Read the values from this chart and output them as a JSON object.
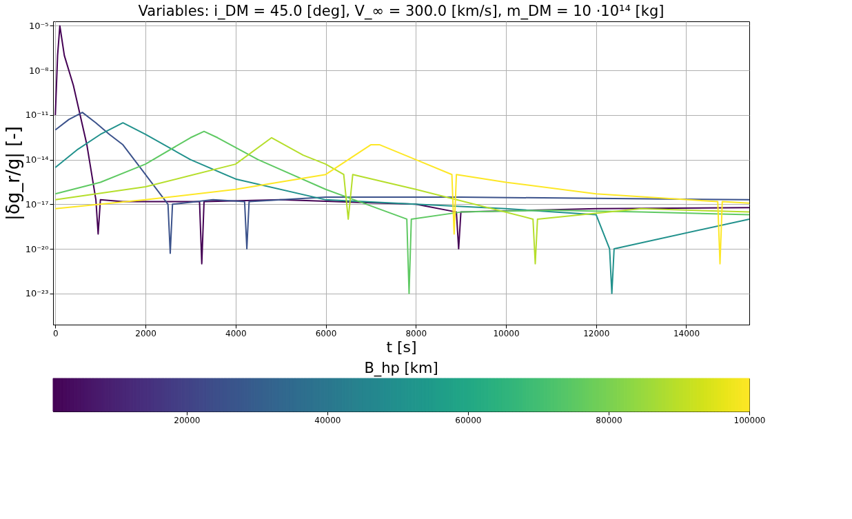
{
  "chart_data": {
    "type": "line",
    "title": "Variables: i_DM = 45.0 [deg], V_∞ = 300.0 [km/s], m_DM = 10 ·10¹⁴ [kg]",
    "xlabel": "t [s]",
    "ylabel": "|δg_r/g| [-]",
    "clabel": "B_hp [km]",
    "log": "y",
    "grid": true,
    "legend": false,
    "line_style": "solid",
    "marker": "none",
    "xlim": [
      -50,
      15400
    ],
    "xticks": [
      0,
      2000,
      4000,
      6000,
      8000,
      10000,
      12000,
      14000
    ],
    "ylim": [
      8e-26,
      2e-05
    ],
    "yticks": [
      {
        "value": 1e-05,
        "label": "10⁻⁵"
      },
      {
        "value": 1e-08,
        "label": "10⁻⁸"
      },
      {
        "value": 1e-11,
        "label": "10⁻¹¹"
      },
      {
        "value": 1e-14,
        "label": "10⁻¹⁴"
      },
      {
        "value": 1e-17,
        "label": "10⁻¹⁷"
      },
      {
        "value": 1e-20,
        "label": "10⁻²⁰"
      },
      {
        "value": 1e-23,
        "label": "10⁻²³"
      }
    ],
    "clim": [
      1000,
      100000
    ],
    "cticks": [
      20000,
      40000,
      60000,
      80000,
      100000
    ],
    "series": [
      {
        "color": "#440154",
        "x": [
          0,
          50,
          100,
          200,
          400,
          700,
          900,
          950,
          1000,
          1500,
          2500,
          3200,
          3250,
          3300,
          5000,
          8000,
          8900,
          8950,
          9000,
          12000,
          15400
        ],
        "values": [
          1e-11,
          1e-07,
          1e-05,
          1e-07,
          1e-09,
          1e-13,
          2e-17,
          1e-19,
          2e-17,
          1.5e-17,
          1.5e-17,
          1.5e-17,
          1e-21,
          1.5e-17,
          2e-17,
          1e-17,
          3e-18,
          1e-20,
          3e-18,
          5e-18,
          6e-18
        ]
      },
      {
        "color": "#3b528b",
        "x": [
          0,
          300,
          600,
          900,
          1200,
          1500,
          2000,
          2500,
          2550,
          2600,
          3500,
          4200,
          4250,
          4300,
          6000,
          9000,
          12000,
          15400
        ],
        "values": [
          1e-12,
          5e-12,
          1.5e-11,
          3e-12,
          5e-13,
          1e-13,
          1e-15,
          1e-17,
          5e-21,
          1e-17,
          2e-17,
          1.5e-17,
          1e-20,
          1.5e-17,
          3e-17,
          3e-17,
          2.5e-17,
          2e-17
        ]
      },
      {
        "color": "#21918c",
        "x": [
          0,
          500,
          1000,
          1500,
          2000,
          3000,
          4000,
          6000,
          8000,
          10000,
          12000,
          12300,
          12350,
          12400,
          15400
        ],
        "values": [
          3e-15,
          5e-14,
          5e-13,
          3e-12,
          5e-13,
          1e-14,
          5e-16,
          2e-17,
          1e-17,
          5e-18,
          2e-18,
          1e-20,
          1e-23,
          1e-20,
          1e-18
        ]
      },
      {
        "color": "#5ec962",
        "x": [
          0,
          1000,
          2000,
          3000,
          3300,
          3600,
          4500,
          6000,
          7800,
          7850,
          7900,
          9000,
          11000,
          13000,
          15400
        ],
        "values": [
          5e-17,
          3e-16,
          5e-15,
          3e-13,
          8e-13,
          3e-13,
          1e-14,
          1e-16,
          1e-18,
          1e-23,
          1e-18,
          3e-18,
          4e-18,
          3e-18,
          2e-18
        ]
      },
      {
        "color": "#b5de2b",
        "x": [
          0,
          2000,
          4000,
          4800,
          5500,
          6000,
          6400,
          6500,
          6600,
          8000,
          10600,
          10650,
          10700,
          13000,
          15400
        ],
        "values": [
          2e-17,
          1.5e-16,
          5e-15,
          3e-13,
          2e-14,
          5e-15,
          1e-15,
          1e-18,
          1e-15,
          1e-16,
          1e-18,
          1e-21,
          1e-18,
          5e-18,
          3e-18
        ]
      },
      {
        "color": "#fde725",
        "x": [
          0,
          2000,
          4000,
          6000,
          7000,
          7200,
          8000,
          8800,
          8850,
          8900,
          10000,
          12000,
          14700,
          14750,
          14800,
          15400
        ],
        "values": [
          5e-18,
          2e-17,
          1e-16,
          1e-15,
          1e-13,
          1e-13,
          1e-14,
          1e-15,
          1e-19,
          1e-15,
          3e-16,
          5e-17,
          1.5e-17,
          1e-21,
          1.5e-17,
          1.2e-17
        ]
      }
    ]
  }
}
